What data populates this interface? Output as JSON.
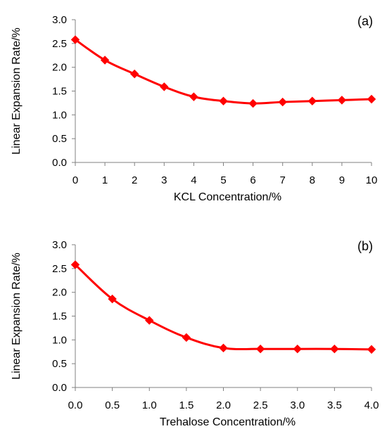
{
  "chart_data": [
    {
      "type": "line",
      "panel_label": "(a)",
      "xlabel": "KCL Concentration/%",
      "ylabel": "Linear Expansion Rate/%",
      "xlim": [
        0,
        10
      ],
      "ylim": [
        0,
        3
      ],
      "x_ticks": [
        "0",
        "1",
        "2",
        "3",
        "4",
        "5",
        "6",
        "7",
        "8",
        "9",
        "10"
      ],
      "y_ticks": [
        "0.0",
        "0.5",
        "1.0",
        "1.5",
        "2.0",
        "2.5",
        "3.0"
      ],
      "x": [
        0,
        1,
        2,
        3,
        4,
        5,
        6,
        7,
        8,
        9,
        10
      ],
      "series": [
        {
          "values": [
            2.58,
            2.15,
            1.86,
            1.59,
            1.38,
            1.29,
            1.24,
            1.27,
            1.29,
            1.31,
            1.33
          ],
          "color": "#ff0000"
        }
      ],
      "marker": "diamond",
      "grid": false,
      "legend": "none"
    },
    {
      "type": "line",
      "panel_label": "(b)",
      "xlabel": "Trehalose Concentration/%",
      "ylabel": "Linear Expansion Rate/%",
      "xlim": [
        0,
        4
      ],
      "ylim": [
        0,
        3
      ],
      "x_ticks": [
        "0.0",
        "0.5",
        "1.0",
        "1.5",
        "2.0",
        "2.5",
        "3.0",
        "3.5",
        "4.0"
      ],
      "y_ticks": [
        "0.0",
        "0.5",
        "1.0",
        "1.5",
        "2.0",
        "2.5",
        "3.0"
      ],
      "x": [
        0,
        0.5,
        1,
        1.5,
        2,
        2.5,
        3,
        3.5,
        4
      ],
      "series": [
        {
          "values": [
            2.58,
            1.86,
            1.41,
            1.05,
            0.83,
            0.81,
            0.81,
            0.81,
            0.8
          ],
          "color": "#ff0000"
        }
      ],
      "marker": "diamond",
      "grid": false,
      "legend": "none"
    }
  ]
}
